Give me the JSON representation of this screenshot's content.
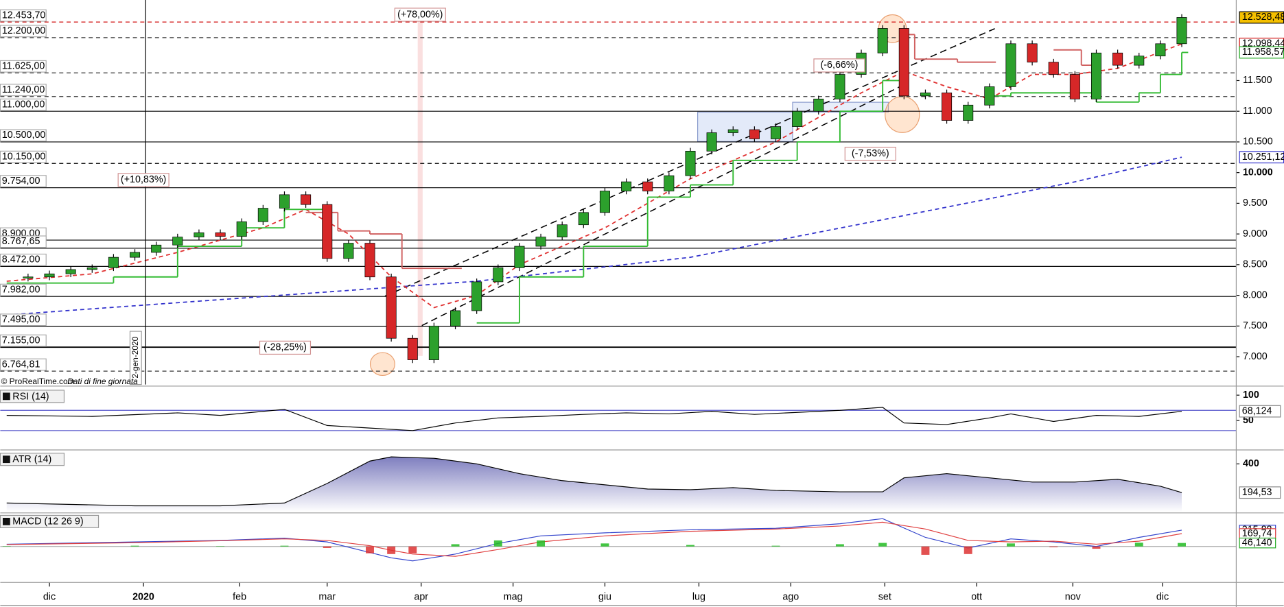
{
  "chart_data": [
    {
      "type": "candlestick",
      "x": [
        -2,
        -1,
        0,
        1,
        2,
        3,
        4,
        5,
        6,
        7,
        8,
        9,
        10,
        11,
        12,
        13,
        14,
        15,
        16,
        17,
        18,
        19,
        20,
        21,
        22,
        23,
        24,
        25,
        26,
        27,
        28,
        29,
        30,
        31,
        32,
        33,
        34,
        35,
        36,
        37,
        38,
        39,
        40,
        41,
        42,
        43,
        44,
        45,
        46,
        47,
        48,
        49,
        50,
        51,
        52,
        53
      ],
      "close": [
        8280,
        8300,
        8350,
        8420,
        8450,
        8620,
        8700,
        8820,
        8950,
        9020,
        8960,
        9200,
        9420,
        9640,
        9480,
        8600,
        8850,
        8300,
        7300,
        6950,
        7500,
        7750,
        8220,
        8450,
        8800,
        8950,
        9150,
        9350,
        9700,
        9850,
        9700,
        9950,
        10350,
        10650,
        10700,
        10550,
        10750,
        11000,
        11200,
        11600,
        11950,
        12350,
        11250,
        11300,
        10850,
        11100,
        11400,
        12100,
        11800,
        11600,
        11200,
        11950,
        11750,
        11900,
        12100,
        12528.48
      ],
      "up_color": "#2ca02c",
      "down_color": "#d62728",
      "xlim": [
        -2.3,
        55.55
      ],
      "xticks": [
        {
          "value": 0,
          "label": "dic"
        },
        {
          "value": 4.4,
          "label": "2020"
        },
        {
          "value": 8.9,
          "label": "feb"
        },
        {
          "value": 13,
          "label": "mar"
        },
        {
          "value": 17.4,
          "label": "apr"
        },
        {
          "value": 21.7,
          "label": "mag"
        },
        {
          "value": 26,
          "label": "giu"
        },
        {
          "value": 30.4,
          "label": "lug"
        },
        {
          "value": 34.7,
          "label": "ago"
        },
        {
          "value": 39.1,
          "label": "set"
        },
        {
          "value": 43.4,
          "label": "ott"
        },
        {
          "value": 47.9,
          "label": "nov"
        },
        {
          "value": 52.1,
          "label": "dic"
        }
      ],
      "ylim": [
        6547,
        12813
      ],
      "yticks": [
        {
          "value": 7000,
          "label": "7.000"
        },
        {
          "value": 7500,
          "label": "7.500"
        },
        {
          "value": 8000,
          "label": "8.000"
        },
        {
          "value": 8500,
          "label": "8.500"
        },
        {
          "value": 9000,
          "label": "9.000"
        },
        {
          "value": 9500,
          "label": "9.500"
        },
        {
          "value": 10000,
          "label": "10.000"
        },
        {
          "value": 10500,
          "label": "10.500"
        },
        {
          "value": 11000,
          "label": "11.000"
        },
        {
          "value": 11500,
          "label": "11.500"
        }
      ],
      "levels": [
        {
          "value": 12453.7,
          "label": "12.453,70",
          "color": "#d01010",
          "style": "dashed"
        },
        {
          "value": 12200,
          "label": "12.200,00",
          "color": "#333333",
          "style": "dashed"
        },
        {
          "value": 11625,
          "label": "11.625,00",
          "color": "#333333",
          "style": "dashed"
        },
        {
          "value": 11240,
          "label": "11.240,00",
          "color": "#333333",
          "style": "dashed"
        },
        {
          "value": 11000,
          "label": "11.000,00",
          "color": "#000000",
          "style": "solid"
        },
        {
          "value": 10500,
          "label": "10.500,00",
          "color": "#000000",
          "style": "solid"
        },
        {
          "value": 10150,
          "label": "10.150,00",
          "color": "#000000",
          "style": "dashed"
        },
        {
          "value": 9754,
          "label": "9.754,00",
          "color": "#000000",
          "style": "solid"
        },
        {
          "value": 8900,
          "label": "8.900,00",
          "color": "#000000",
          "style": "solid"
        },
        {
          "value": 8767.65,
          "label": "8.767,65",
          "color": "#000000",
          "style": "solid"
        },
        {
          "value": 8472,
          "label": "8.472,00",
          "color": "#000000",
          "style": "solid"
        },
        {
          "value": 7982,
          "label": "7.982,00",
          "color": "#000000",
          "style": "solid"
        },
        {
          "value": 7495,
          "label": "7.495,00",
          "color": "#000000",
          "style": "solid"
        },
        {
          "value": 7155,
          "label": "7.155,00",
          "color": "#000000",
          "style": "solid"
        },
        {
          "value": 6764.81,
          "label": "6.764,81",
          "color": "#333333",
          "style": "dashed"
        }
      ],
      "lines": [
        {
          "color": "#3333cc",
          "style": "dashed",
          "x": [
            -2,
            10,
            20,
            30,
            40,
            48,
            53
          ],
          "values": [
            7680,
            7980,
            8230,
            8620,
            9300,
            9850,
            10251.12
          ]
        },
        {
          "color": "#e03030",
          "style": "dashed",
          "x": [
            -2,
            2,
            6,
            10,
            12,
            14,
            16,
            18,
            20,
            22,
            26,
            30,
            34,
            38,
            40,
            42,
            44,
            46,
            48,
            50,
            53
          ],
          "values": [
            8230,
            8350,
            8700,
            9100,
            9400,
            9000,
            8300,
            7800,
            8000,
            8500,
            9100,
            9900,
            10500,
            11300,
            11650,
            11400,
            11200,
            11600,
            11600,
            11700,
            12098.44
          ]
        },
        {
          "color": "#33bb33",
          "style": "step",
          "x": [
            -2,
            3,
            6,
            9,
            11,
            13,
            20,
            22,
            25,
            28,
            30,
            32,
            35,
            37,
            39,
            40,
            44,
            45,
            49,
            51,
            52,
            53
          ],
          "values": [
            8200,
            8300,
            8800,
            9100,
            9400,
            null,
            7550,
            8300,
            8800,
            9600,
            9800,
            10200,
            10500,
            11000,
            11500,
            null,
            11250,
            11300,
            11150,
            11300,
            11600,
            11958.57
          ]
        },
        {
          "color": "#d06060",
          "style": "step",
          "x": [
            12,
            13.5,
            15,
            16.5,
            19.3,
            39.8,
            40.5,
            42.5,
            44.3,
            47,
            48.3,
            49
          ],
          "values": [
            9350,
            9050,
            9000,
            8440,
            null,
            12250,
            11850,
            11800,
            null,
            12000,
            11750,
            null
          ]
        }
      ],
      "last_labels": [
        {
          "value": 12528.48,
          "label": "12.528,48",
          "color": "#000000",
          "background": "#f5c000"
        },
        {
          "value": 12098.44,
          "label": "12.098,44",
          "color": "#d01010",
          "background": "#ffffff"
        },
        {
          "value": 11958.57,
          "label": "11.958,57",
          "color": "#22aa22",
          "background": "#ffffff"
        },
        {
          "value": 10251.12,
          "label": "10.251,12",
          "color": "#3333cc",
          "background": "#ffffff"
        }
      ],
      "annotations": [
        "(+78,00%)",
        "(+10,83%)",
        "(-28,25%)",
        "(-6,66%)",
        "(-7,53%)"
      ],
      "date_marker": {
        "x": 4.5,
        "label": "2-gen-2020"
      },
      "source": "© ProRealTime.com",
      "source_note": "Dati di fine giornata"
    },
    {
      "type": "line",
      "title": "RSI (14)",
      "x": [
        -2,
        2,
        6,
        8,
        11,
        13,
        15,
        17,
        19,
        21,
        23,
        25,
        27,
        29,
        31,
        33,
        35,
        37,
        39,
        40,
        42,
        44,
        45,
        47,
        49,
        51,
        53
      ],
      "values": [
        60,
        58,
        65,
        60,
        72,
        40,
        35,
        30,
        45,
        55,
        58,
        62,
        65,
        63,
        68,
        62,
        66,
        70,
        76,
        45,
        42,
        55,
        63,
        48,
        60,
        58,
        68.124
      ],
      "color": "#000000",
      "ylim": [
        -5,
        113
      ],
      "yticks": [
        50,
        100
      ],
      "bands": [
        30,
        70
      ],
      "band_color": "#5555cc",
      "last_label": {
        "value": 68.124,
        "label": "68,124"
      }
    },
    {
      "type": "area",
      "title": "ATR (14)",
      "x": [
        -2,
        4,
        8,
        11,
        13,
        15,
        16,
        18,
        20,
        22,
        24,
        26,
        28,
        30,
        32,
        34,
        37,
        39,
        40,
        42,
        44,
        46,
        48,
        50,
        52,
        53
      ],
      "values": [
        120,
        100,
        100,
        120,
        260,
        420,
        450,
        440,
        400,
        330,
        280,
        250,
        220,
        215,
        230,
        210,
        200,
        200,
        300,
        330,
        300,
        270,
        270,
        290,
        240,
        194.53
      ],
      "color": "#8080c0",
      "ylim": [
        55,
        488
      ],
      "yticks": [
        400
      ],
      "last_label": {
        "value": 194.53,
        "label": "194,53"
      }
    },
    {
      "type": "macd",
      "title": "MACD (12 26 9)",
      "x": [
        -2,
        4,
        8,
        11,
        13,
        15,
        16,
        17,
        19,
        21,
        23,
        26,
        30,
        34,
        37,
        39,
        41,
        43,
        45,
        47,
        49,
        51,
        53
      ],
      "series": [
        {
          "color": "#3344cc",
          "values": [
            30,
            60,
            80,
            110,
            60,
            -80,
            -150,
            -190,
            -100,
            40,
            140,
            180,
            220,
            240,
            300,
            367,
            120,
            -20,
            100,
            60,
            0,
            120,
            215.88
          ]
        },
        {
          "color": "#e04040",
          "values": [
            25,
            50,
            75,
            100,
            80,
            10,
            -50,
            -100,
            -130,
            -40,
            60,
            140,
            200,
            230,
            270,
            320,
            230,
            80,
            60,
            70,
            30,
            70,
            169.74
          ]
        },
        {
          "color": "histogram",
          "values": [
            5,
            10,
            5,
            10,
            -20,
            -90,
            -100,
            -90,
            30,
            80,
            80,
            40,
            20,
            10,
            30,
            47,
            -110,
            -100,
            40,
            -10,
            -30,
            50,
            46.14
          ]
        }
      ],
      "up_color": "#22bb22",
      "down_color": "#dd3333",
      "ylim": [
        -475,
        432
      ],
      "last_labels": [
        {
          "value": 215.88,
          "label": "215,88",
          "color": "#3344cc"
        },
        {
          "value": 169.74,
          "label": "169,74",
          "color": "#e04040"
        },
        {
          "value": 46.14,
          "label": "46,140",
          "color": "#22aa22"
        }
      ]
    }
  ]
}
